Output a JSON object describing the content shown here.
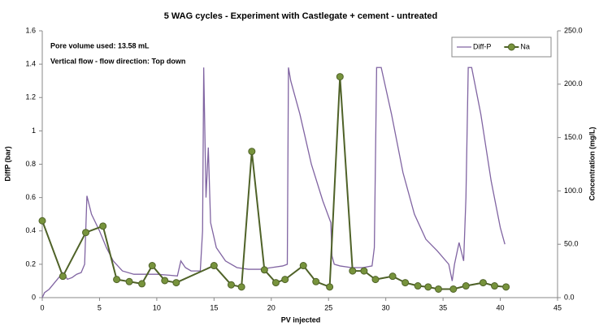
{
  "chart_data": {
    "type": "line",
    "title": "5 WAG cycles - Experiment with Castlegate + cement - untreated",
    "annotations": [
      "Pore volume used: 13.58 mL",
      "Vertical flow - flow direction: Top down"
    ],
    "x_label": "PV injected",
    "y_label": "DiffP (bar)",
    "y2_label": "Concentration (mg/L)",
    "xlim": [
      0,
      45
    ],
    "xticks": [
      0,
      5,
      10,
      15,
      20,
      25,
      30,
      35,
      40,
      45
    ],
    "ylim": [
      0,
      1.6
    ],
    "yticks": [
      0,
      0.2,
      0.4,
      0.6,
      0.8,
      1,
      1.2,
      1.4,
      1.6
    ],
    "y2lim": [
      0,
      250
    ],
    "y2ticks": [
      {
        "value": 0,
        "label": "0.0"
      },
      {
        "value": 50,
        "label": "50.0"
      },
      {
        "value": 100,
        "label": "100.0"
      },
      {
        "value": 150,
        "label": "150.0"
      },
      {
        "value": 200,
        "label": "200.0"
      },
      {
        "value": 250,
        "label": "250.0"
      }
    ],
    "legend": "upper right",
    "series": [
      {
        "name": "Diff-P",
        "color": "#8064a2",
        "axis": "y",
        "x": [
          0,
          0.2,
          0.6,
          1.2,
          1.8,
          2.2,
          2.6,
          3.0,
          3.4,
          3.7,
          3.9,
          4.3,
          5.0,
          5.6,
          6.2,
          7,
          8,
          9,
          10,
          11,
          11.8,
          12.1,
          12.5,
          13,
          13.8,
          14.0,
          14.1,
          14.3,
          14.5,
          14.7,
          15.2,
          16,
          17,
          18,
          19,
          20,
          21,
          21.4,
          21.5,
          21.7,
          22.5,
          23.5,
          24.5,
          25.2,
          25.3,
          25.5,
          26,
          27,
          28,
          28.8,
          29.0,
          29.2,
          29.6,
          30.5,
          31.5,
          32.5,
          33.5,
          34.5,
          35.5,
          35.8,
          36.0,
          36.4,
          36.8,
          37.0,
          37.2,
          37.5,
          38.3,
          39.2,
          40,
          40.4
        ],
        "values": [
          0,
          0.03,
          0.05,
          0.1,
          0.15,
          0.11,
          0.12,
          0.14,
          0.15,
          0.2,
          0.61,
          0.5,
          0.4,
          0.3,
          0.22,
          0.16,
          0.14,
          0.14,
          0.14,
          0.135,
          0.13,
          0.22,
          0.18,
          0.16,
          0.16,
          0.4,
          1.38,
          0.6,
          0.9,
          0.45,
          0.3,
          0.22,
          0.18,
          0.17,
          0.17,
          0.18,
          0.19,
          0.2,
          1.38,
          1.3,
          1.1,
          0.8,
          0.58,
          0.45,
          0.25,
          0.2,
          0.19,
          0.18,
          0.18,
          0.19,
          0.3,
          1.38,
          1.38,
          1.1,
          0.75,
          0.5,
          0.35,
          0.28,
          0.2,
          0.1,
          0.2,
          0.33,
          0.22,
          0.6,
          1.38,
          1.38,
          1.1,
          0.7,
          0.42,
          0.32
        ]
      },
      {
        "name": "Na",
        "color": "#4f6228",
        "marker_color": "#77933c",
        "axis": "y2",
        "x": [
          0,
          1.8,
          3.8,
          5.3,
          6.5,
          7.6,
          8.7,
          9.6,
          10.7,
          11.7,
          15.0,
          16.5,
          17.4,
          18.3,
          19.4,
          20.4,
          21.2,
          22.8,
          23.9,
          25.1,
          26.0,
          27.1,
          28.1,
          29.1,
          30.6,
          31.7,
          32.8,
          33.7,
          34.6,
          35.9,
          37.0,
          38.5,
          39.5,
          40.5
        ],
        "values": [
          72,
          20,
          61,
          67,
          17,
          15,
          13,
          30,
          16,
          14,
          30,
          12,
          10,
          137,
          26,
          14,
          17,
          30,
          15,
          10,
          207,
          25,
          25,
          17,
          20,
          14,
          11,
          10,
          8,
          8,
          11,
          14,
          11,
          10
        ]
      }
    ]
  }
}
